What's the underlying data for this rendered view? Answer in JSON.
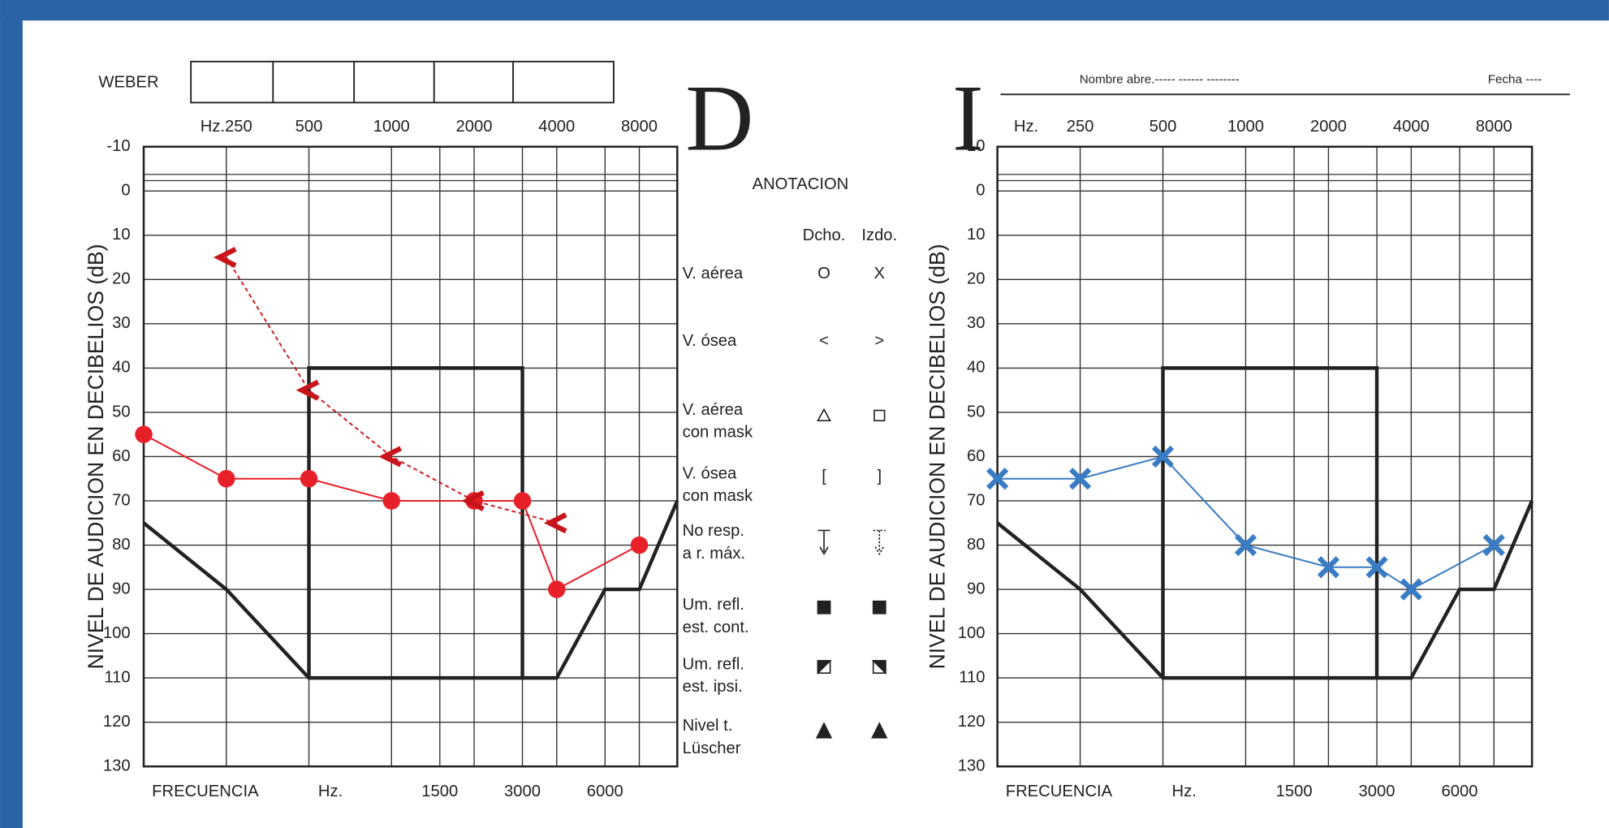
{
  "weber_label": "WEBER",
  "annotation": {
    "title": "ANOTACION",
    "columns": [
      "Dcho.",
      "Izdo."
    ],
    "rows": [
      {
        "label": [
          "V. aérea"
        ],
        "symbols": [
          "O",
          "X"
        ]
      },
      {
        "label": [
          "V. ósea"
        ],
        "symbols": [
          "<",
          ">"
        ]
      },
      {
        "label": [
          "V. aérea",
          "con  mask"
        ]
      },
      {
        "label": [
          "V. ósea",
          "con mask"
        ],
        "symbols": [
          "[",
          "]"
        ]
      },
      {
        "label": [
          "No resp.",
          "a r. máx."
        ]
      },
      {
        "label": [
          "Um. refl.",
          "est. cont."
        ]
      },
      {
        "label": [
          "Um. refl.",
          "est. ipsi."
        ]
      },
      {
        "label": [
          "Nivel t.",
          "Lüscher"
        ]
      }
    ]
  },
  "chart_data": [
    {
      "type": "line",
      "side": "D",
      "xscale": "log",
      "xlim": [
        125,
        11000
      ],
      "ylim": [
        -10,
        130
      ],
      "yticks": [
        -10,
        0,
        10,
        20,
        30,
        40,
        50,
        60,
        70,
        80,
        90,
        100,
        110,
        120,
        130
      ],
      "top_xticks": [
        {
          "value": 250,
          "label": "Hz.250"
        },
        500,
        1000,
        2000,
        4000,
        8000
      ],
      "bottom_xticks": [
        1500,
        3000,
        6000
      ],
      "x_label": "FRECUENCIA",
      "x_unit": "Hz.",
      "y_label": "NIVEL  DE  AUDICION  EN  DECIBELIOS  (dB)",
      "series": [
        {
          "color": "#222222",
          "line_style": "thick",
          "x": [
            125,
            250,
            500,
            4000,
            6000,
            8000,
            11000
          ],
          "values": [
            75,
            90,
            110,
            110,
            90,
            90,
            70
          ]
        },
        {
          "color": "#222222",
          "line_style": "thick",
          "x": [
            500,
            500,
            3000,
            3000
          ],
          "values": [
            110,
            40,
            40,
            110
          ]
        },
        {
          "color": "#e8202a",
          "marker": "circle",
          "line_style": "solid",
          "x": [
            125,
            250,
            500,
            1000,
            2000,
            3000,
            4000,
            8000
          ],
          "values": [
            55,
            65,
            65,
            70,
            70,
            70,
            90,
            80
          ]
        },
        {
          "color": "#c8151b",
          "marker": "bone-right",
          "line_style": "dashed",
          "x": [
            250,
            500,
            1000,
            2000,
            4000
          ],
          "values": [
            15,
            45,
            60,
            70,
            75
          ]
        }
      ]
    },
    {
      "type": "line",
      "side": "I",
      "xscale": "log",
      "xlim": [
        125,
        11000
      ],
      "ylim": [
        -10,
        130
      ],
      "yticks": [
        -10,
        0,
        10,
        20,
        30,
        40,
        50,
        60,
        70,
        80,
        90,
        100,
        110,
        120,
        130
      ],
      "hz_label": "Hz.",
      "top_xticks": [
        250,
        500,
        1000,
        2000,
        4000,
        8000
      ],
      "bottom_xticks": [
        1500,
        3000,
        6000
      ],
      "x_label": "FRECUENCIA",
      "x_unit": "Hz.",
      "y_label": "NIVEL  DE  AUDICION  EN  DECIBELIOS  (dB)",
      "name_field": "Nombre abre.-----   ------   --------",
      "date_field": "Fecha  ----",
      "series": [
        {
          "color": "#222222",
          "line_style": "thick",
          "x": [
            125,
            250,
            500,
            4000,
            6000,
            8000,
            11000
          ],
          "values": [
            75,
            90,
            110,
            110,
            90,
            90,
            70
          ]
        },
        {
          "color": "#222222",
          "line_style": "thick",
          "x": [
            500,
            500,
            3000,
            3000
          ],
          "values": [
            110,
            40,
            40,
            110
          ]
        },
        {
          "color": "#3a7cc4",
          "marker": "cross",
          "line_style": "solid",
          "x": [
            125,
            250,
            500,
            1000,
            2000,
            3000,
            4000,
            8000
          ],
          "values": [
            65,
            65,
            60,
            80,
            85,
            85,
            90,
            80
          ]
        }
      ]
    }
  ]
}
